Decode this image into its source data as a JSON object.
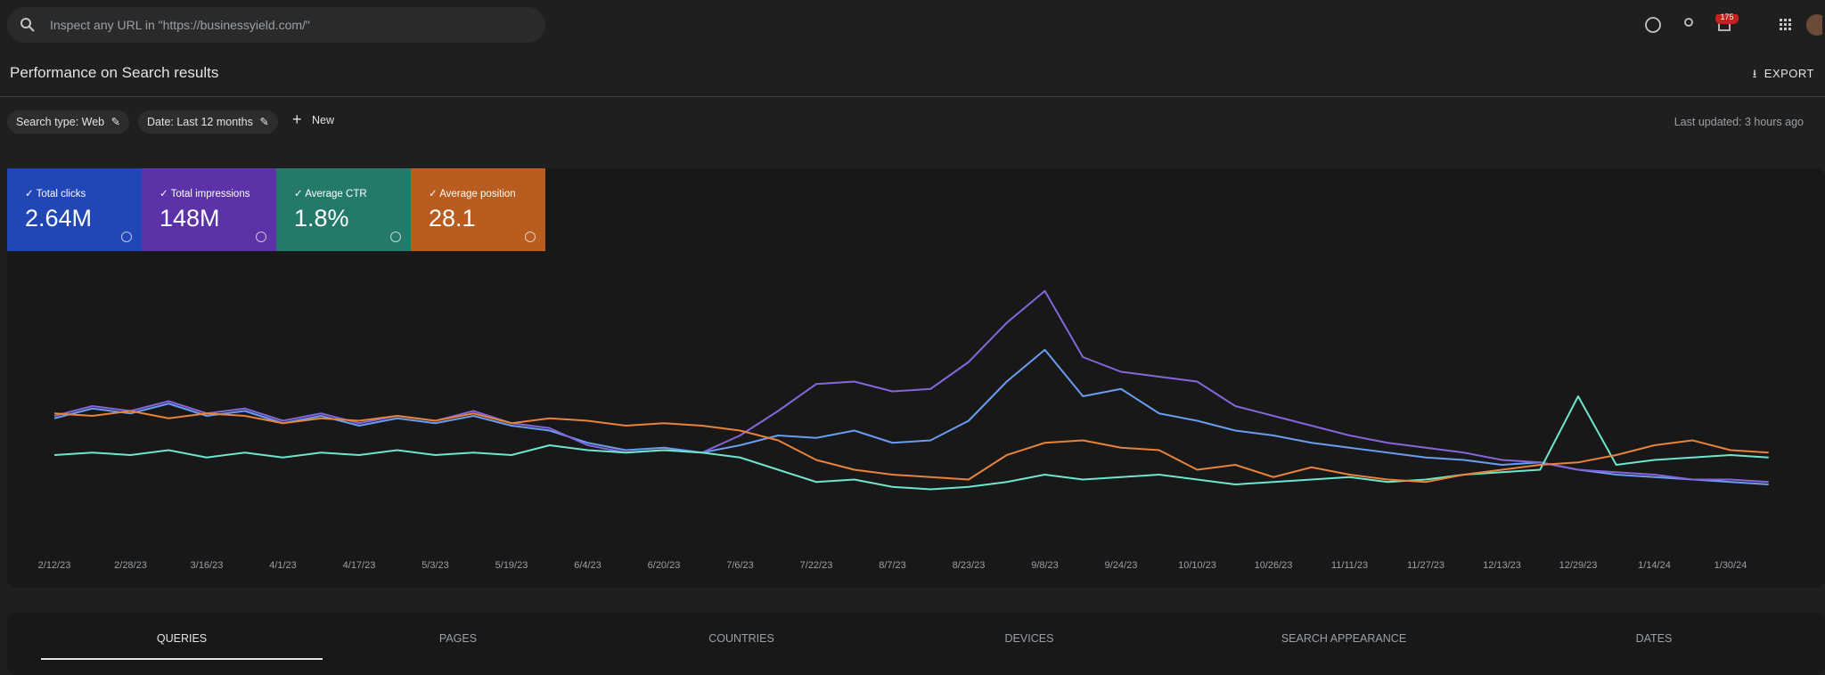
{
  "header": {
    "search_placeholder": "Inspect any URL in \"https://businessyield.com/\"",
    "notification_count": "175"
  },
  "page": {
    "title": "Performance on Search results",
    "export_label": "EXPORT",
    "filters": [
      "Search type: Web",
      "Date: Last 12 months"
    ],
    "new_label": "New",
    "last_updated": "Last updated: 3 hours ago"
  },
  "chart_data": {
    "type": "line",
    "x": [
      "2/12/23",
      "2/20/23",
      "2/28/23",
      "3/8/23",
      "3/16/23",
      "3/24/23",
      "4/1/23",
      "4/9/23",
      "4/17/23",
      "4/25/23",
      "5/3/23",
      "5/11/23",
      "5/19/23",
      "5/27/23",
      "6/4/23",
      "6/12/23",
      "6/20/23",
      "6/28/23",
      "7/6/23",
      "7/14/23",
      "7/22/23",
      "7/30/23",
      "8/7/23",
      "8/15/23",
      "8/23/23",
      "8/31/23",
      "9/8/23",
      "9/16/23",
      "9/24/23",
      "10/2/23",
      "10/10/23",
      "10/18/23",
      "10/26/23",
      "11/3/23",
      "11/11/23",
      "11/19/23",
      "11/27/23",
      "12/5/23",
      "12/13/23",
      "12/21/23",
      "12/29/23",
      "1/6/24",
      "1/14/24",
      "1/22/24",
      "1/30/24",
      "2/7/24"
    ],
    "xticks": [
      "2/12/23",
      "2/28/23",
      "3/16/23",
      "4/1/23",
      "4/17/23",
      "5/3/23",
      "5/19/23",
      "6/4/23",
      "6/20/23",
      "7/6/23",
      "7/22/23",
      "8/7/23",
      "8/23/23",
      "9/8/23",
      "9/24/23",
      "10/10/23",
      "10/26/23",
      "11/11/23",
      "11/27/23",
      "12/13/23",
      "12/29/23",
      "1/14/24",
      "1/30/24"
    ],
    "ylim": [
      0,
      100
    ],
    "series": [
      {
        "name": "Total clicks",
        "total": "2.64M",
        "color": "#6a9cf0",
        "values": [
          43,
          47,
          45,
          49,
          44,
          46,
          41,
          44,
          40,
          43,
          41,
          44,
          40,
          38,
          33,
          30,
          31,
          29,
          32,
          36,
          35,
          38,
          33,
          34,
          42,
          58,
          71,
          52,
          55,
          45,
          42,
          38,
          36,
          33,
          31,
          29,
          27,
          26,
          24,
          25,
          22,
          20,
          19,
          18,
          17,
          16
        ]
      },
      {
        "name": "Total impressions",
        "total": "148M",
        "color": "#8466dc",
        "values": [
          44,
          48,
          46,
          50,
          45,
          47,
          42,
          45,
          41,
          44,
          42,
          46,
          41,
          39,
          32,
          29,
          30,
          29,
          36,
          46,
          57,
          58,
          54,
          55,
          66,
          82,
          95,
          68,
          62,
          60,
          58,
          48,
          44,
          40,
          36,
          33,
          31,
          29,
          26,
          25,
          22,
          21,
          20,
          18,
          18,
          17
        ]
      },
      {
        "name": "Average CTR",
        "total": "1.8%",
        "color": "#6ee6cc",
        "values": [
          28,
          29,
          28,
          30,
          27,
          29,
          27,
          29,
          28,
          30,
          28,
          29,
          28,
          32,
          30,
          29,
          30,
          29,
          27,
          22,
          17,
          18,
          15,
          14,
          15,
          17,
          20,
          18,
          19,
          20,
          18,
          16,
          17,
          18,
          19,
          17,
          18,
          20,
          21,
          22,
          52,
          24,
          26,
          27,
          28,
          27
        ]
      },
      {
        "name": "Average position",
        "total": "28.1",
        "color": "#e8833a",
        "values": [
          45,
          44,
          46,
          43,
          45,
          44,
          41,
          43,
          42,
          44,
          42,
          45,
          41,
          43,
          42,
          40,
          41,
          40,
          38,
          34,
          26,
          22,
          20,
          19,
          18,
          28,
          33,
          34,
          31,
          30,
          22,
          24,
          19,
          23,
          20,
          18,
          17,
          20,
          22,
          24,
          25,
          28,
          32,
          34,
          30,
          29
        ]
      }
    ]
  },
  "tabs": [
    "QUERIES",
    "PAGES",
    "COUNTRIES",
    "DEVICES",
    "SEARCH APPEARANCE",
    "DATES"
  ]
}
